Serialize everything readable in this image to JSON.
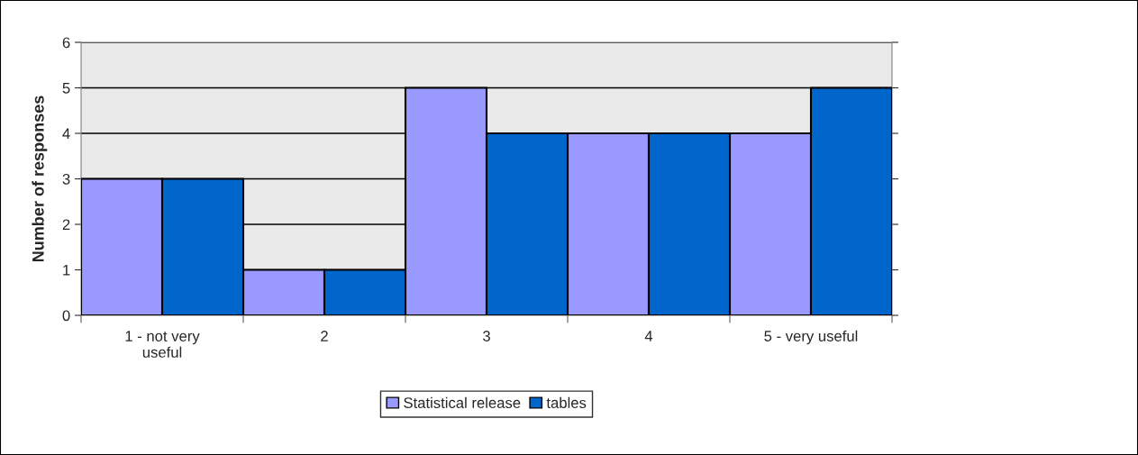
{
  "chart_data": {
    "type": "bar",
    "ylabel": "Number of responses",
    "categories": [
      "1 - not very useful",
      "2",
      "3",
      "4",
      "5 - very useful"
    ],
    "series": [
      {
        "name": "Statistical release",
        "color": "#9999ff",
        "values": [
          3,
          1,
          5,
          4,
          4
        ]
      },
      {
        "name": "tables",
        "color": "#0066cc",
        "values": [
          3,
          1,
          4,
          4,
          5
        ]
      }
    ],
    "ylim": [
      0,
      6
    ],
    "yticks": [
      0,
      1,
      2,
      3,
      4,
      5,
      6
    ],
    "grid": "y",
    "legend": "bottom"
  }
}
